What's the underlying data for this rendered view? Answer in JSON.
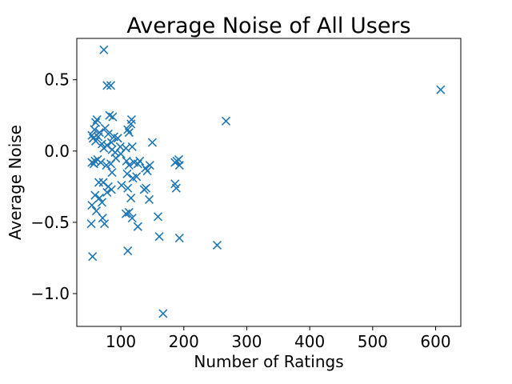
{
  "chart_data": {
    "type": "scatter",
    "title": "Average Noise of All Users",
    "xlabel": "Number of Ratings",
    "ylabel": "Average Noise",
    "xlim": [
      30,
      640
    ],
    "ylim": [
      -1.23,
      0.79
    ],
    "xticks": [
      100,
      200,
      300,
      400,
      500,
      600
    ],
    "xtick_labels": [
      "100",
      "200",
      "300",
      "400",
      "500",
      "600"
    ],
    "yticks": [
      -1.0,
      -0.5,
      0.0,
      0.5
    ],
    "ytick_labels": [
      "−1.0",
      "−0.5",
      "0.0",
      "0.5"
    ],
    "grid": false,
    "marker": "x",
    "color": "#1f77b4",
    "series": [
      {
        "points": [
          [
            73,
            0.71
          ],
          [
            78,
            0.46
          ],
          [
            84,
            0.46
          ],
          [
            608,
            0.43
          ],
          [
            82,
            0.25
          ],
          [
            87,
            0.24
          ],
          [
            117,
            0.22
          ],
          [
            116,
            0.19
          ],
          [
            267,
            0.21
          ],
          [
            60,
            0.2
          ],
          [
            62,
            0.22
          ],
          [
            58,
            0.15
          ],
          [
            66,
            0.13
          ],
          [
            75,
            0.16
          ],
          [
            80,
            0.12
          ],
          [
            54,
            0.11
          ],
          [
            56,
            0.09
          ],
          [
            60,
            0.07
          ],
          [
            64,
            0.1
          ],
          [
            70,
            0.05
          ],
          [
            73,
            0.02
          ],
          [
            78,
            0.04
          ],
          [
            85,
            0.06
          ],
          [
            89,
            0.1
          ],
          [
            95,
            0.09
          ],
          [
            99,
            0.03
          ],
          [
            108,
            0.02
          ],
          [
            111,
            0.15
          ],
          [
            113,
            0.13
          ],
          [
            118,
            0.03
          ],
          [
            150,
            0.06
          ],
          [
            86,
            0.01
          ],
          [
            91,
            -0.01
          ],
          [
            100,
            -0.02
          ],
          [
            54,
            -0.08
          ],
          [
            57,
            -0.09
          ],
          [
            59,
            -0.07
          ],
          [
            63,
            -0.06
          ],
          [
            68,
            -0.08
          ],
          [
            77,
            -0.1
          ],
          [
            84,
            -0.09
          ],
          [
            92,
            -0.05
          ],
          [
            109,
            -0.07
          ],
          [
            113,
            -0.1
          ],
          [
            121,
            -0.08
          ],
          [
            127,
            -0.09
          ],
          [
            130,
            -0.07
          ],
          [
            139,
            -0.12
          ],
          [
            146,
            -0.1
          ],
          [
            186,
            -0.08
          ],
          [
            189,
            -0.07
          ],
          [
            193,
            -0.1
          ],
          [
            192,
            -0.06
          ],
          [
            86,
            -0.15
          ],
          [
            110,
            -0.16
          ],
          [
            119,
            -0.19
          ],
          [
            142,
            -0.14
          ],
          [
            65,
            -0.22
          ],
          [
            72,
            -0.22
          ],
          [
            80,
            -0.25
          ],
          [
            85,
            -0.27
          ],
          [
            101,
            -0.24
          ],
          [
            111,
            -0.26
          ],
          [
            125,
            -0.18
          ],
          [
            137,
            -0.27
          ],
          [
            140,
            -0.26
          ],
          [
            186,
            -0.23
          ],
          [
            188,
            -0.26
          ],
          [
            59,
            -0.31
          ],
          [
            66,
            -0.33
          ],
          [
            78,
            -0.29
          ],
          [
            116,
            -0.33
          ],
          [
            145,
            -0.34
          ],
          [
            54,
            -0.38
          ],
          [
            61,
            -0.42
          ],
          [
            70,
            -0.36
          ],
          [
            108,
            -0.44
          ],
          [
            113,
            -0.43
          ],
          [
            118,
            -0.47
          ],
          [
            159,
            -0.46
          ],
          [
            127,
            -0.53
          ],
          [
            53,
            -0.51
          ],
          [
            71,
            -0.47
          ],
          [
            74,
            -0.51
          ],
          [
            161,
            -0.6
          ],
          [
            193,
            -0.61
          ],
          [
            253,
            -0.66
          ],
          [
            111,
            -0.7
          ],
          [
            55,
            -0.74
          ],
          [
            167,
            -1.14
          ]
        ]
      }
    ]
  }
}
